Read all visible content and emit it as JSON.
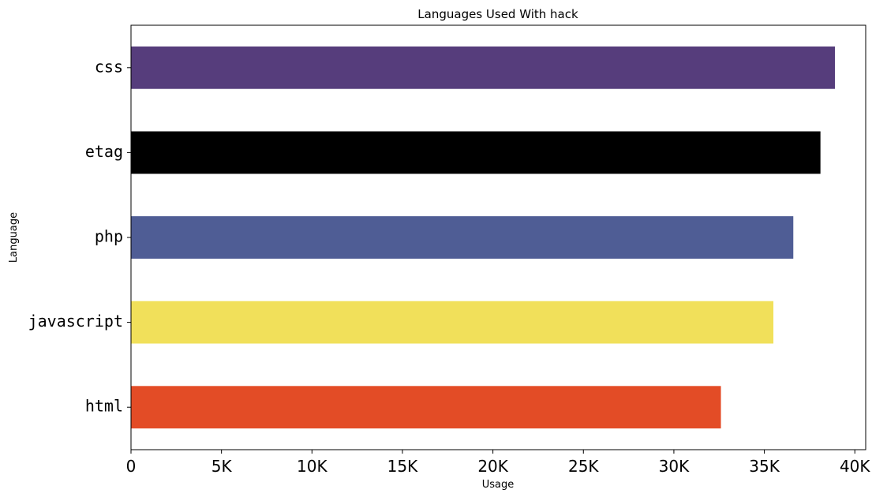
{
  "chart_data": {
    "type": "bar",
    "orientation": "horizontal",
    "title": "Languages Used With hack",
    "xlabel": "Usage",
    "ylabel": "Language",
    "categories": [
      "css",
      "etag",
      "php",
      "javascript",
      "html"
    ],
    "values": [
      38900,
      38100,
      36600,
      35500,
      32600
    ],
    "colors": [
      "#563d7c",
      "#000000",
      "#4f5d95",
      "#f1e05a",
      "#e34c26"
    ],
    "xlim": [
      0,
      40600
    ],
    "xticks": [
      0,
      5000,
      10000,
      15000,
      20000,
      25000,
      30000,
      35000,
      40000
    ],
    "xtick_labels": [
      "0",
      "5K",
      "10K",
      "15K",
      "20K",
      "25K",
      "30K",
      "35K",
      "40K"
    ],
    "grid": false,
    "legend": "none"
  }
}
